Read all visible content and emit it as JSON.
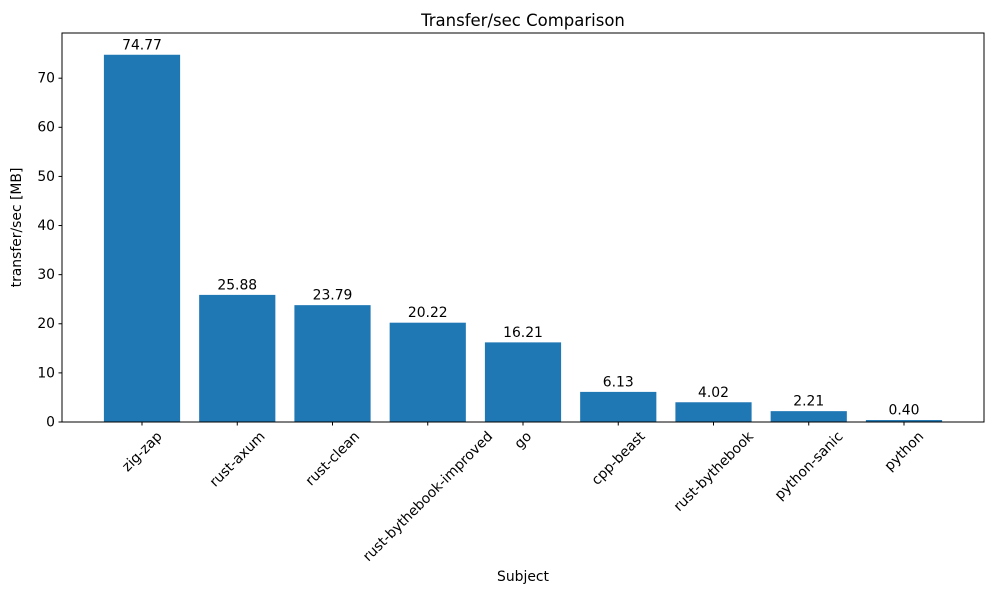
{
  "chart_data": {
    "type": "bar",
    "title": "Transfer/sec Comparison",
    "xlabel": "Subject",
    "ylabel": "transfer/sec [MB]",
    "categories": [
      "zig-zap",
      "rust-axum",
      "rust-clean",
      "rust-bythebook-improved",
      "go",
      "cpp-beast",
      "rust-bythebook",
      "python-sanic",
      "python"
    ],
    "values": [
      74.77,
      25.88,
      23.79,
      20.22,
      16.21,
      6.13,
      4.02,
      2.21,
      0.4
    ],
    "value_labels": [
      "74.77",
      "25.88",
      "23.79",
      "20.22",
      "16.21",
      "6.13",
      "4.02",
      "2.21",
      "0.40"
    ],
    "yticks": [
      0,
      10,
      20,
      30,
      40,
      50,
      60,
      70
    ],
    "ylim": [
      0,
      79.2
    ],
    "bar_color": "#1f77b4",
    "axis_color": "#000000",
    "bar_width_fraction": 0.8,
    "x_tick_rotation_deg": 45,
    "grid": false,
    "legend_position": "none"
  }
}
